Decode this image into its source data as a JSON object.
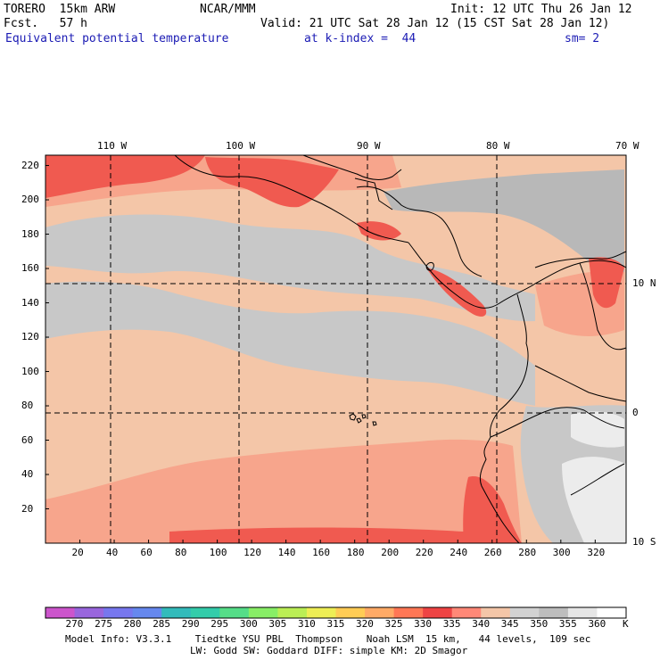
{
  "header": {
    "model": "TORERO  15km ARW",
    "org": "NCAR/MMM",
    "init": "Init: 12 UTC Thu 26 Jan 12",
    "fcst": "Fcst.   57 h",
    "valid": "Valid: 21 UTC Sat 28 Jan 12 (15 CST Sat 28 Jan 12)",
    "field": "Equivalent potential temperature",
    "level": "at k-index =  44",
    "smooth": "sm= 2"
  },
  "map": {
    "lon_labels": [
      "110 W",
      "100 W",
      "90 W",
      "80 W",
      "70 W"
    ],
    "lat_labels": [
      "10 N",
      "0",
      "10 S"
    ],
    "y_ticks": [
      "220",
      "200",
      "180",
      "160",
      "140",
      "120",
      "100",
      "80",
      "60",
      "40",
      "20"
    ],
    "x_ticks": [
      "20",
      "40",
      "60",
      "80",
      "100",
      "120",
      "140",
      "160",
      "180",
      "200",
      "220",
      "240",
      "260",
      "280",
      "300",
      "320"
    ],
    "colors": {
      "ocean_base": "#f4c6a8",
      "cool_gray": "#c8c8c8",
      "cooler_gray": "#b8b8b8",
      "warm_salmon": "#f7a58c",
      "hot_red": "#f05a50",
      "hottest": "#e9443f",
      "cold_white": "#ececec",
      "coast": "#000000"
    }
  },
  "colorbar": {
    "unit": "K",
    "labels": [
      "270",
      "275",
      "280",
      "285",
      "290",
      "295",
      "300",
      "305",
      "310",
      "315",
      "320",
      "325",
      "330",
      "335",
      "340",
      "345",
      "350",
      "355",
      "360"
    ],
    "colors": [
      "#cc55cc",
      "#9966dd",
      "#7777ee",
      "#6688ee",
      "#33bbbb",
      "#33ccaa",
      "#55dd88",
      "#88ee66",
      "#bbee55",
      "#eeee55",
      "#ffcc55",
      "#ffaa66",
      "#ff7755",
      "#ee4444",
      "#ff8877",
      "#f4c6a8",
      "#d2d2d2",
      "#bdbdbd",
      "#e6e6e6",
      "#ffffff"
    ]
  },
  "footer": {
    "line1": "Model Info: V3.3.1    Tiedtke YSU PBL  Thompson    Noah LSM  15 km,   44 levels,  109 sec",
    "line2": "LW: Godd SW: Goddard DIFF: simple KM: 2D Smagor"
  }
}
